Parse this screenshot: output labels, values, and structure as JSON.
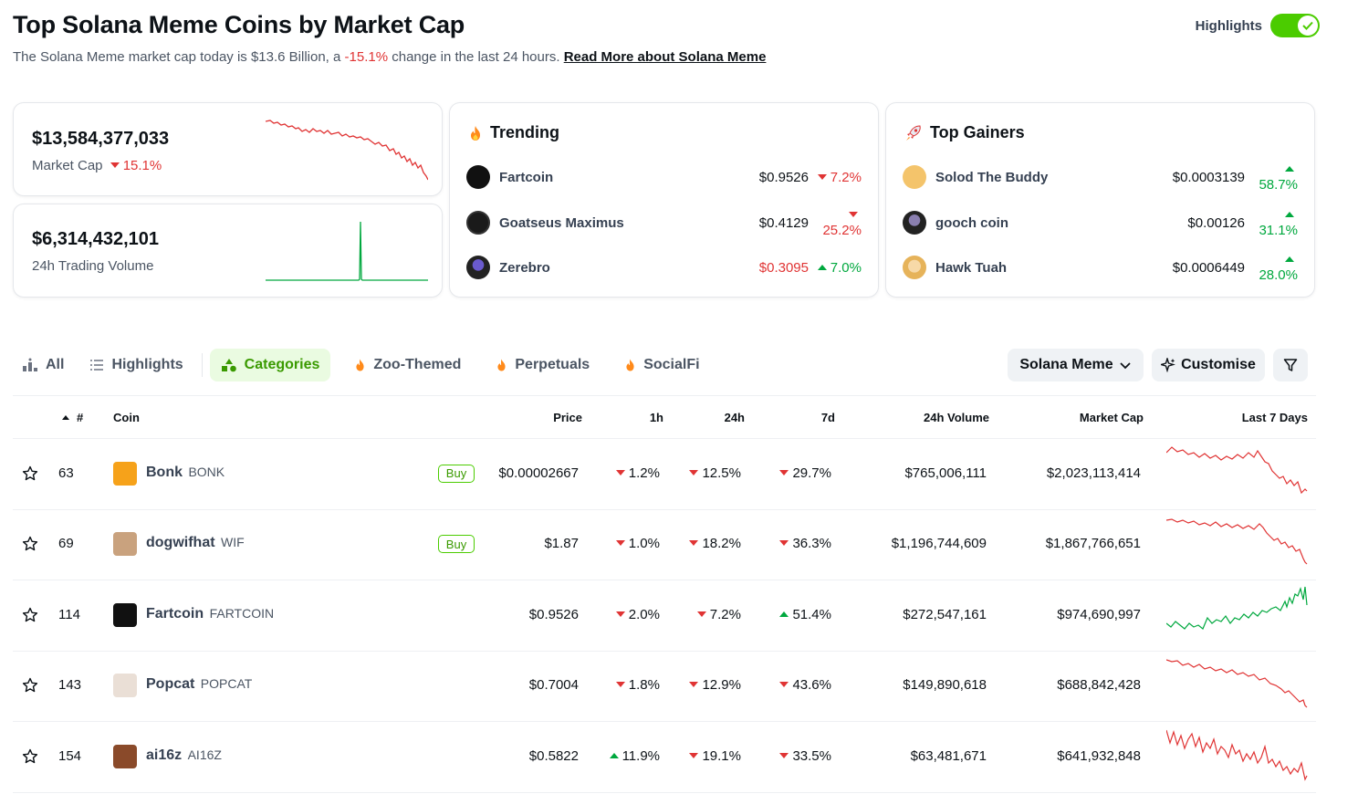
{
  "header": {
    "title": "Top Solana Meme Coins by Market Cap",
    "subtitle_pre": "The Solana Meme market cap today is $13.6 Billion, a ",
    "subtitle_change": "-15.1%",
    "subtitle_post": " change in the last 24 hours. ",
    "subtitle_link": "Read More about Solana Meme",
    "highlights_label": "Highlights",
    "highlights_on": true
  },
  "stats": {
    "market_cap_value": "$13,584,377,033",
    "market_cap_label": "Market Cap",
    "market_cap_change": "15.1%",
    "volume_value": "$6,314,432,101",
    "volume_label": "24h Trading Volume"
  },
  "trending": {
    "title": "Trending",
    "items": [
      {
        "name": "Fartcoin",
        "price": "$0.9526",
        "change": "7.2%",
        "dir": "down"
      },
      {
        "name": "Goatseus Maximus",
        "price": "$0.4129",
        "change": "25.2%",
        "dir": "down"
      },
      {
        "name": "Zerebro",
        "price": "$0.3095",
        "change": "7.0%",
        "dir": "up"
      }
    ]
  },
  "gainers": {
    "title": "Top Gainers",
    "items": [
      {
        "name": "Solod The Buddy",
        "price": "$0.0003139",
        "change": "58.7%",
        "dir": "up"
      },
      {
        "name": "gooch coin",
        "price": "$0.00126",
        "change": "31.1%",
        "dir": "up"
      },
      {
        "name": "Hawk Tuah",
        "price": "$0.0006449",
        "change": "28.0%",
        "dir": "up"
      }
    ]
  },
  "tabs": [
    {
      "label": "All",
      "icon": "bar-chart-icon"
    },
    {
      "label": "Highlights",
      "icon": "list-icon"
    },
    {
      "label": "Categories",
      "icon": "shapes-icon",
      "active": true
    },
    {
      "label": "Zoo-Themed",
      "icon": "fire-icon"
    },
    {
      "label": "Perpetuals",
      "icon": "fire-icon"
    },
    {
      "label": "SocialFi",
      "icon": "fire-icon"
    }
  ],
  "controls": {
    "category_select": "Solana Meme",
    "customise": "Customise"
  },
  "table": {
    "headers": {
      "rank": "#",
      "coin": "Coin",
      "price": "Price",
      "h1": "1h",
      "h24": "24h",
      "d7": "7d",
      "volume": "24h Volume",
      "mcap": "Market Cap",
      "last7": "Last 7 Days"
    },
    "buy_label": "Buy",
    "rows": [
      {
        "rank": "63",
        "name": "Bonk",
        "symbol": "BONK",
        "buy": true,
        "price": "$0.00002667",
        "h1": "1.2%",
        "h1_dir": "down",
        "h24": "12.5%",
        "h24_dir": "down",
        "d7": "29.7%",
        "d7_dir": "down",
        "volume": "$765,006,111",
        "mcap": "$2,023,113,414",
        "color": "#f6a21a"
      },
      {
        "rank": "69",
        "name": "dogwifhat",
        "symbol": "WIF",
        "buy": true,
        "price": "$1.87",
        "h1": "1.0%",
        "h1_dir": "down",
        "h24": "18.2%",
        "h24_dir": "down",
        "d7": "36.3%",
        "d7_dir": "down",
        "volume": "$1,196,744,609",
        "mcap": "$1,867,766,651",
        "color": "#c9a27e"
      },
      {
        "rank": "114",
        "name": "Fartcoin",
        "symbol": "FARTCOIN",
        "buy": false,
        "price": "$0.9526",
        "h1": "2.0%",
        "h1_dir": "down",
        "h24": "7.2%",
        "h24_dir": "down",
        "d7": "51.4%",
        "d7_dir": "up",
        "volume": "$272,547,161",
        "mcap": "$974,690,997",
        "color": "#111111"
      },
      {
        "rank": "143",
        "name": "Popcat",
        "symbol": "POPCAT",
        "buy": false,
        "price": "$0.7004",
        "h1": "1.8%",
        "h1_dir": "down",
        "h24": "12.9%",
        "h24_dir": "down",
        "d7": "43.6%",
        "d7_dir": "down",
        "volume": "$149,890,618",
        "mcap": "$688,842,428",
        "color": "#eadfd6"
      },
      {
        "rank": "154",
        "name": "ai16z",
        "symbol": "AI16Z",
        "buy": false,
        "price": "$0.5822",
        "h1": "11.9%",
        "h1_dir": "up",
        "h24": "19.1%",
        "h24_dir": "down",
        "d7": "33.5%",
        "d7_dir": "down",
        "volume": "$63,481,671",
        "mcap": "$641,932,848",
        "color": "#8a4a2a"
      }
    ]
  },
  "colors": {
    "negative": "#e03434",
    "positive": "#00a83e",
    "accent": "#4bcc00"
  }
}
